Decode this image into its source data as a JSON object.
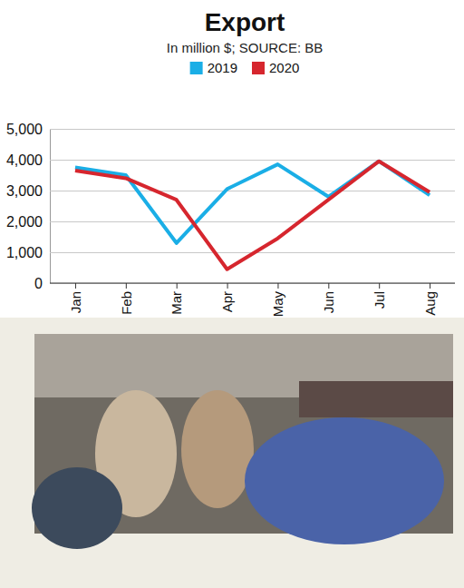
{
  "chart_data": {
    "type": "line",
    "title": "Export",
    "subtitle": "In million $; SOURCE: BB",
    "categories": [
      "Jan",
      "Feb",
      "Mar",
      "Apr",
      "May",
      "Jun",
      "Jul",
      "Aug"
    ],
    "series": [
      {
        "name": "2019",
        "color": "#1aaee6",
        "values": [
          3750,
          3500,
          1300,
          3050,
          3850,
          2800,
          3950,
          2850
        ]
      },
      {
        "name": "2020",
        "color": "#d6262e",
        "values": [
          3650,
          3400,
          2700,
          450,
          1450,
          2700,
          3950,
          2950
        ]
      }
    ],
    "ylim": [
      0,
      5000
    ],
    "yticks": [
      0,
      {
        "value": 1000,
        "label": "1,000"
      },
      {
        "value": 2000,
        "label": "2,000"
      },
      {
        "value": 3000,
        "label": "3,000"
      },
      {
        "value": 4000,
        "label": "4,000"
      },
      {
        "value": 5000,
        "label": "5,000"
      }
    ],
    "grid": true,
    "legend": "top"
  }
}
